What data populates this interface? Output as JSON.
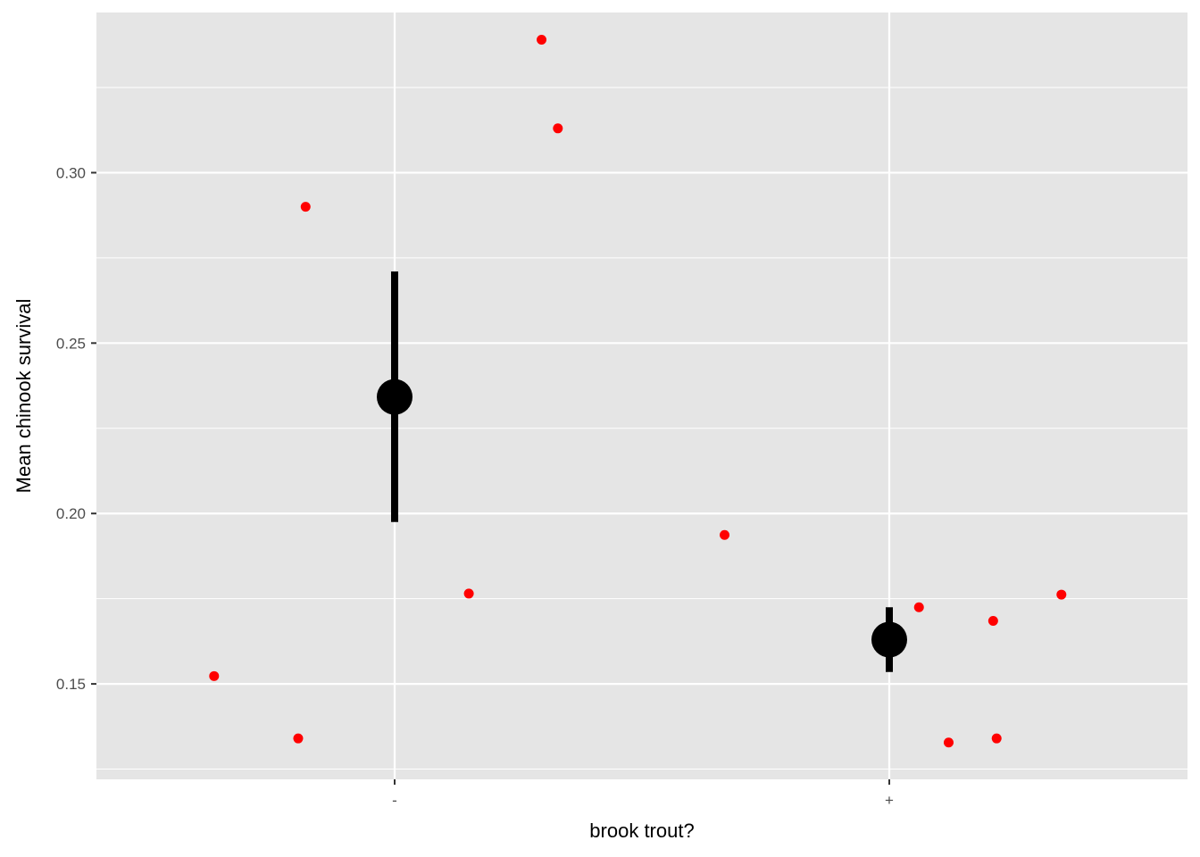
{
  "chart_data": {
    "type": "scatter",
    "title": "",
    "xlabel": "brook trout?",
    "ylabel": "Mean chinook survival",
    "categories": [
      "-",
      "+"
    ],
    "ylim": [
      0.122,
      0.347
    ],
    "y_ticks": [
      0.15,
      0.2,
      0.25,
      0.3
    ],
    "y_tick_labels": [
      "0.15",
      "0.20",
      "0.25",
      "0.30"
    ],
    "grid": true,
    "legend": "none",
    "colors": {
      "panel": "#e5e5e5",
      "grid": "#ffffff",
      "raw_points": "#ff0000",
      "summary": "#000000"
    },
    "series": [
      {
        "role": "raw observations (jittered)",
        "points": [
          {
            "x": 0.635,
            "y": 0.1523
          },
          {
            "x": 0.805,
            "y": 0.134
          },
          {
            "x": 0.82,
            "y": 0.29
          },
          {
            "x": 1.15,
            "y": 0.1765
          },
          {
            "x": 1.297,
            "y": 0.339
          },
          {
            "x": 1.33,
            "y": 0.313
          },
          {
            "x": 1.667,
            "y": 0.1937
          },
          {
            "x": 2.06,
            "y": 0.1725
          },
          {
            "x": 2.12,
            "y": 0.1328
          },
          {
            "x": 2.21,
            "y": 0.1685
          },
          {
            "x": 2.217,
            "y": 0.134
          },
          {
            "x": 2.348,
            "y": 0.1762
          }
        ]
      },
      {
        "role": "group mean with error bar",
        "points": [
          {
            "category": "-",
            "mean": 0.2342,
            "lower": 0.1975,
            "upper": 0.271
          },
          {
            "category": "+",
            "mean": 0.163,
            "lower": 0.1535,
            "upper": 0.1725
          }
        ]
      }
    ]
  }
}
